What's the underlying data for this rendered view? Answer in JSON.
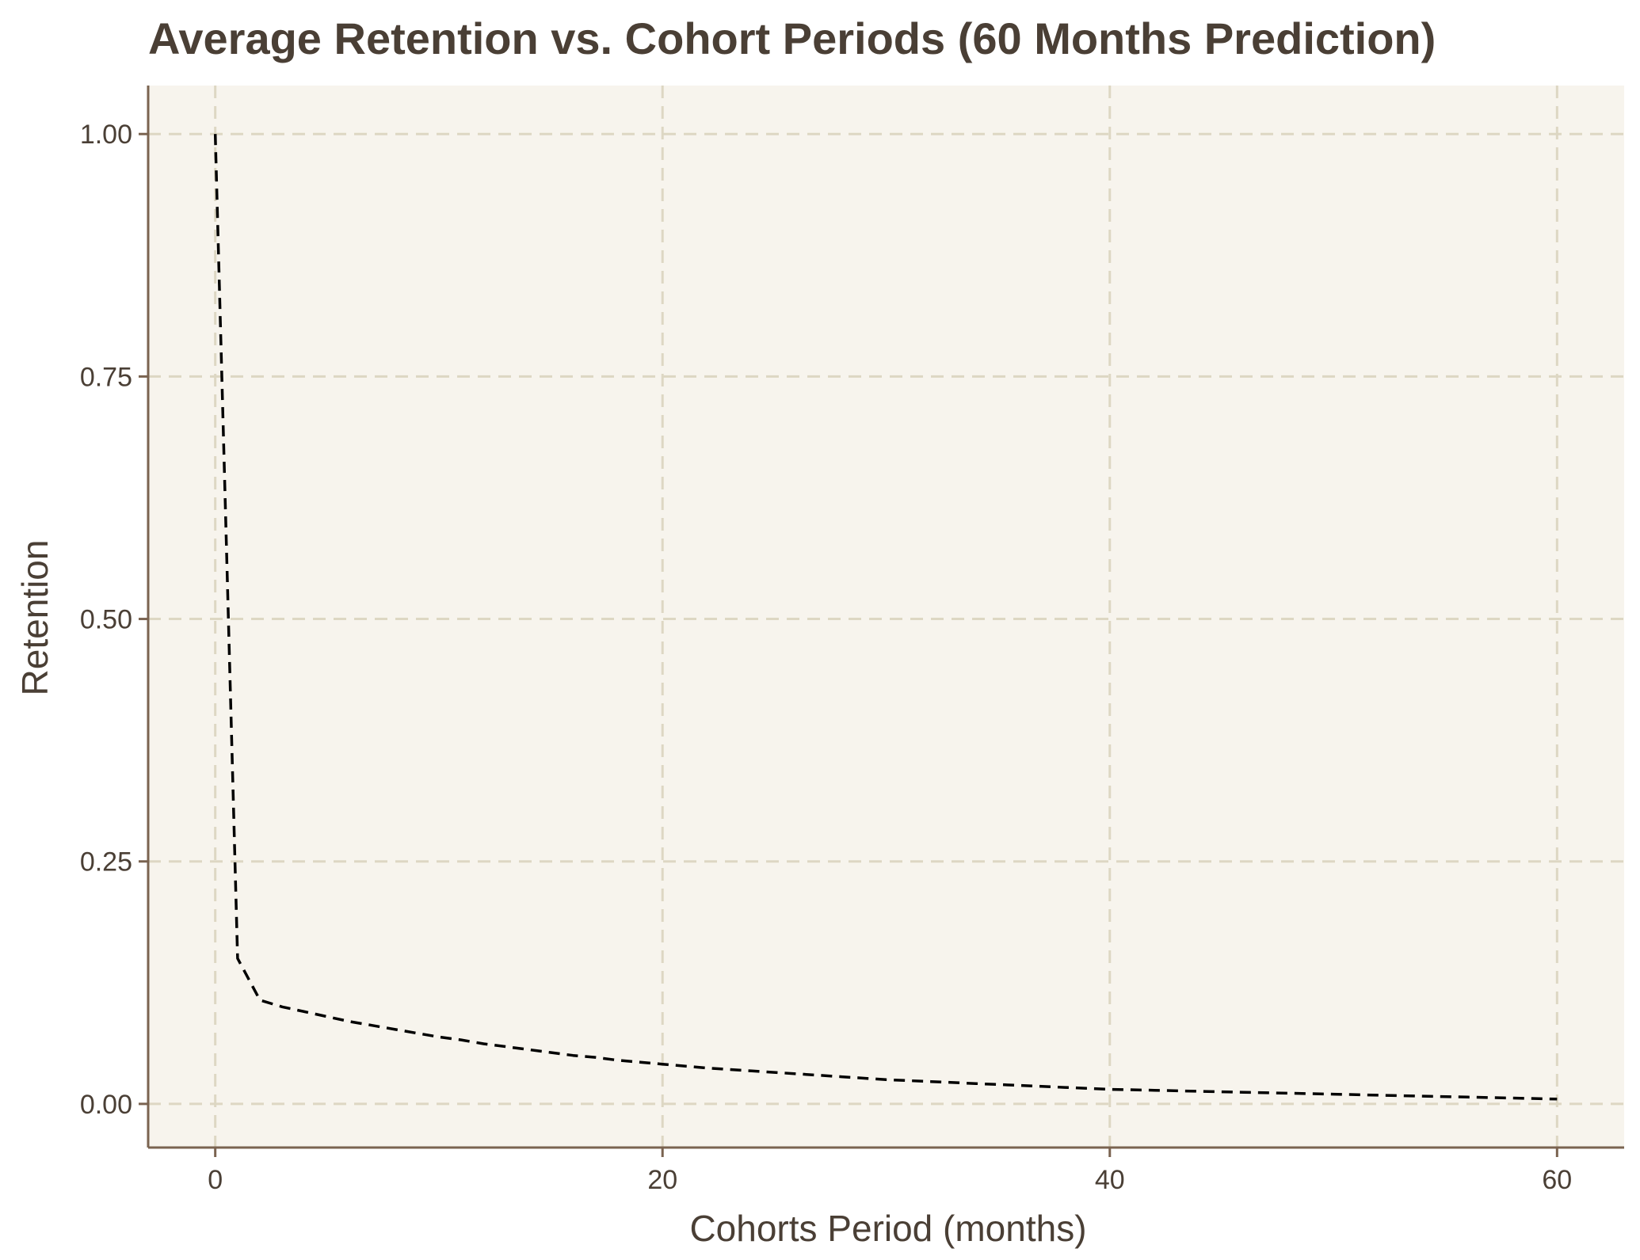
{
  "chart_data": {
    "type": "line",
    "title": "Average Retention vs. Cohort Periods (60 Months Prediction)",
    "xlabel": "Cohorts Period (months)",
    "ylabel": "Retention",
    "xlim": [
      -3,
      63
    ],
    "ylim": [
      -0.045,
      1.05
    ],
    "x_ticks": [
      0,
      20,
      40,
      60
    ],
    "x_tick_labels": [
      "0",
      "20",
      "40",
      "60"
    ],
    "y_ticks": [
      0,
      0.25,
      0.5,
      0.75,
      1.0
    ],
    "y_tick_labels": [
      "0.00",
      "0.25",
      "0.50",
      "0.75",
      "1.00"
    ],
    "grid": true,
    "grid_style": "dashed",
    "series": [
      {
        "line_style": "dashed",
        "color": "#000000",
        "x": [
          0,
          1,
          2,
          3,
          4,
          5,
          6,
          7,
          8,
          9,
          10,
          11,
          12,
          13,
          14,
          15,
          16,
          17,
          18,
          19,
          20,
          22,
          24,
          26,
          28,
          30,
          32,
          34,
          36,
          38,
          40,
          42,
          44,
          46,
          48,
          50,
          52,
          54,
          56,
          58,
          60
        ],
        "y": [
          1.0,
          0.15,
          0.107,
          0.1,
          0.095,
          0.09,
          0.085,
          0.081,
          0.077,
          0.073,
          0.069,
          0.066,
          0.062,
          0.059,
          0.056,
          0.053,
          0.05,
          0.048,
          0.045,
          0.043,
          0.041,
          0.037,
          0.034,
          0.031,
          0.028,
          0.025,
          0.023,
          0.021,
          0.019,
          0.017,
          0.015,
          0.014,
          0.013,
          0.012,
          0.011,
          0.01,
          0.009,
          0.008,
          0.007,
          0.006,
          0.005
        ]
      }
    ]
  },
  "colors": {
    "panel_background": "#f7f4ed",
    "grid": "#ddd7c3",
    "axis": "#7a6350",
    "text": "#4a3f35",
    "line": "#000000"
  }
}
